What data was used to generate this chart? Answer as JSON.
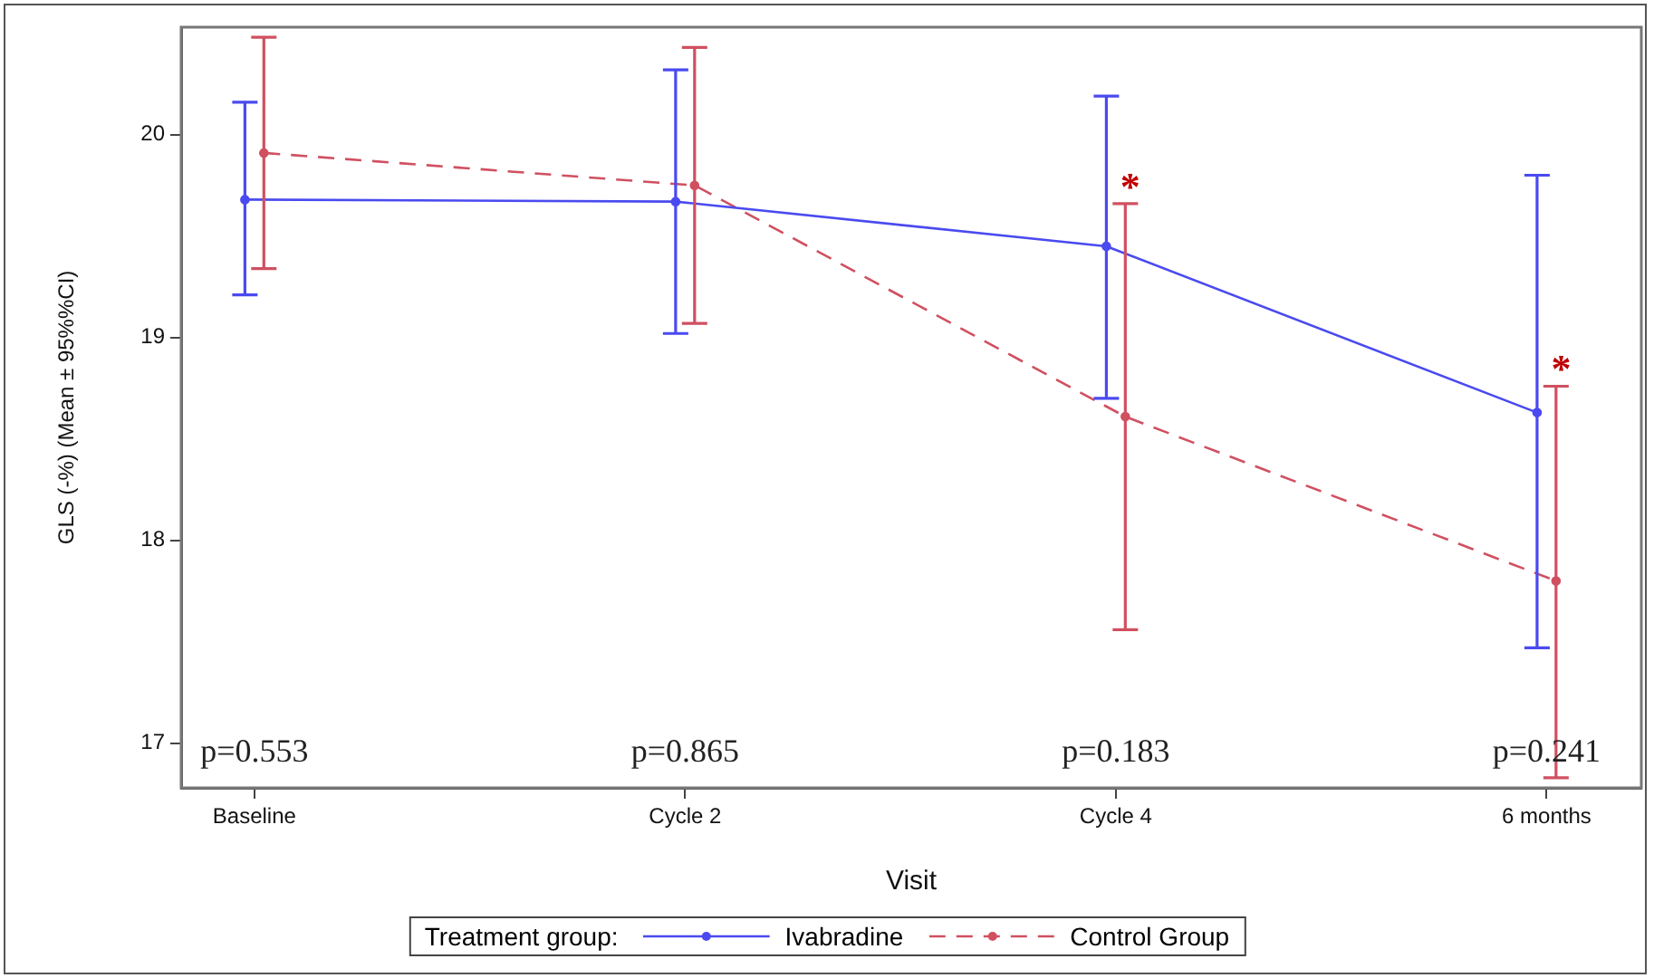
{
  "chart_data": {
    "type": "line",
    "xlabel": "Visit",
    "ylabel": "GLS (-%) (Mean ± 95%%CI)",
    "legend_title": "Treatment group:",
    "categories": [
      "Baseline",
      "Cycle 2",
      "Cycle 4",
      "6 months"
    ],
    "ylim": [
      16.78,
      20.53
    ],
    "yticks": [
      17,
      18,
      19,
      20
    ],
    "grid": false,
    "legend": "bottom",
    "marker": "circle",
    "series": [
      {
        "name": "Ivabradine",
        "color": "#4a4af0",
        "line_style": "solid",
        "values": [
          19.68,
          19.67,
          19.45,
          18.63
        ],
        "errors": [
          [
            19.21,
            20.16
          ],
          [
            19.02,
            20.32
          ],
          [
            18.7,
            20.19
          ],
          [
            17.47,
            19.8
          ]
        ]
      },
      {
        "name": "Control Group",
        "color": "#d05060",
        "line_style": "dashed",
        "values": [
          19.91,
          19.75,
          18.61,
          17.8
        ],
        "errors": [
          [
            19.34,
            20.48
          ],
          [
            19.07,
            20.43
          ],
          [
            17.56,
            19.66
          ],
          [
            16.83,
            18.76
          ]
        ]
      }
    ],
    "annotations": [
      "p=0.553",
      "p=0.865",
      "p=0.183",
      "p=0.241",
      {
        "text": "*",
        "x": "Cycle 4",
        "y": 19.66
      },
      {
        "text": "*",
        "x": "6 months",
        "y": 18.76
      }
    ]
  }
}
